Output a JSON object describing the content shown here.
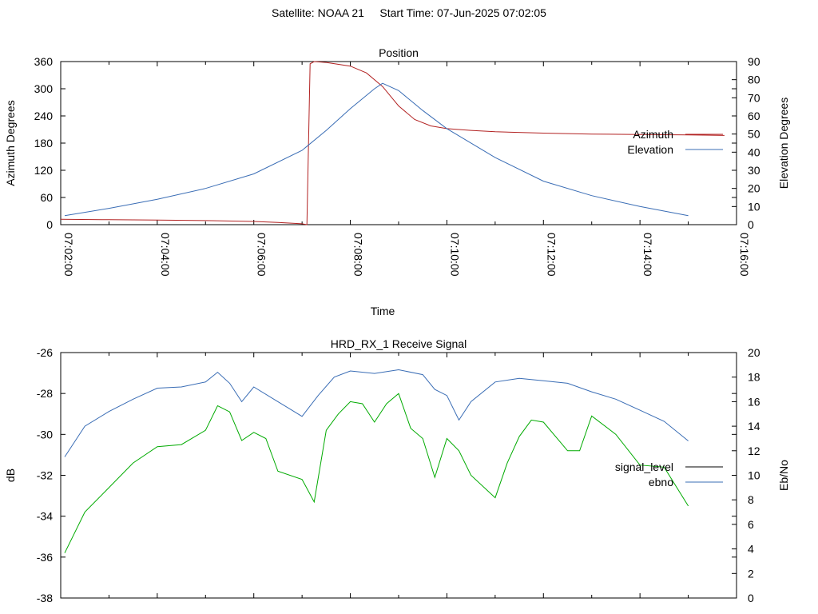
{
  "page": {
    "title": "Satellite: NOAA 21     Start Time: 07-Jun-2025 07:02:05"
  },
  "colors": {
    "azimuth": "#b22222",
    "elevation": "#3a6db5",
    "signal_level": "#00aa00",
    "ebno": "#3a6db5"
  },
  "chart_data": [
    {
      "type": "line",
      "title": "Position",
      "xlabel": "Time",
      "ylabel": "Azimuth Degrees",
      "y2label": "Elevation Degrees",
      "xlim": [
        "07:02:00",
        "07:16:00"
      ],
      "xticks": [
        "07:02:00",
        "07:04:00",
        "07:06:00",
        "07:08:00",
        "07:10:00",
        "07:12:00",
        "07:14:00",
        "07:16:00"
      ],
      "ylim": [
        0,
        360
      ],
      "yticks": [
        0,
        60,
        120,
        180,
        240,
        300,
        360
      ],
      "y2lim": [
        0,
        90
      ],
      "y2ticks": [
        0,
        10,
        20,
        30,
        40,
        50,
        60,
        70,
        80,
        90
      ],
      "legend": "right",
      "series": [
        {
          "name": "Azimuth",
          "axis": "y",
          "color": "#b22222",
          "x": [
            "07:02:00",
            "07:03:00",
            "07:04:00",
            "07:05:00",
            "07:06:00",
            "07:06:30",
            "07:07:00",
            "07:07:06",
            "07:07:10",
            "07:07:15",
            "07:07:30",
            "07:08:00",
            "07:08:20",
            "07:08:40",
            "07:09:00",
            "07:09:20",
            "07:09:40",
            "07:10:00",
            "07:10:30",
            "07:11:00",
            "07:12:00",
            "07:13:00",
            "07:14:00",
            "07:15:00",
            "07:15:45"
          ],
          "y": [
            12,
            11,
            10,
            9,
            7,
            5,
            2,
            0,
            355,
            360,
            358,
            350,
            335,
            305,
            262,
            232,
            218,
            212,
            208,
            205,
            202,
            200,
            199,
            198,
            197
          ]
        },
        {
          "name": "Elevation",
          "axis": "y2",
          "color": "#3a6db5",
          "x": [
            "07:02:05",
            "07:03:00",
            "07:04:00",
            "07:05:00",
            "07:06:00",
            "07:07:00",
            "07:07:30",
            "07:08:00",
            "07:08:30",
            "07:08:40",
            "07:09:00",
            "07:09:30",
            "07:10:00",
            "07:11:00",
            "07:12:00",
            "07:13:00",
            "07:14:00",
            "07:15:00"
          ],
          "y": [
            5,
            9,
            14,
            20,
            28,
            41,
            52,
            64,
            75,
            78,
            74,
            63,
            53,
            37,
            24,
            16,
            10,
            5
          ]
        }
      ]
    },
    {
      "type": "line",
      "title": "HRD_RX_1 Receive Signal",
      "ylabel": "dB",
      "y2label": "Eb/No",
      "ylim": [
        -38,
        -26
      ],
      "yticks": [
        -38,
        -36,
        -34,
        -32,
        -30,
        -28,
        -26
      ],
      "y2lim": [
        0,
        20
      ],
      "y2ticks": [
        0,
        2,
        4,
        6,
        8,
        10,
        12,
        14,
        16,
        18,
        20
      ],
      "xlim": [
        "07:02:00",
        "07:16:00"
      ],
      "legend": "right",
      "series": [
        {
          "name": "signal_level",
          "axis": "y",
          "color": "#00aa00",
          "x": [
            "07:02:05",
            "07:02:30",
            "07:03:00",
            "07:03:30",
            "07:04:00",
            "07:04:30",
            "07:05:00",
            "07:05:15",
            "07:05:30",
            "07:05:45",
            "07:06:00",
            "07:06:15",
            "07:06:30",
            "07:07:00",
            "07:07:15",
            "07:07:30",
            "07:07:45",
            "07:08:00",
            "07:08:15",
            "07:08:30",
            "07:08:45",
            "07:09:00",
            "07:09:15",
            "07:09:30",
            "07:09:45",
            "07:10:00",
            "07:10:15",
            "07:10:30",
            "07:11:00",
            "07:11:15",
            "07:11:30",
            "07:11:45",
            "07:12:00",
            "07:12:30",
            "07:12:45",
            "07:13:00",
            "07:13:30",
            "07:14:00",
            "07:14:30",
            "07:15:00"
          ],
          "y": [
            -35.8,
            -33.8,
            -32.6,
            -31.4,
            -30.6,
            -30.5,
            -29.8,
            -28.6,
            -28.9,
            -30.3,
            -29.9,
            -30.2,
            -31.8,
            -32.2,
            -33.3,
            -29.8,
            -29.0,
            -28.4,
            -28.5,
            -29.4,
            -28.5,
            -28.0,
            -29.7,
            -30.2,
            -32.1,
            -30.2,
            -30.8,
            -32.0,
            -33.1,
            -31.4,
            -30.1,
            -29.3,
            -29.4,
            -30.8,
            -30.8,
            -29.1,
            -30.0,
            -31.5,
            -31.6,
            -33.5
          ]
        },
        {
          "name": "ebno",
          "axis": "y2",
          "color": "#3a6db5",
          "x": [
            "07:02:05",
            "07:02:30",
            "07:03:00",
            "07:03:30",
            "07:04:00",
            "07:04:30",
            "07:05:00",
            "07:05:15",
            "07:05:30",
            "07:05:45",
            "07:06:00",
            "07:06:30",
            "07:07:00",
            "07:07:20",
            "07:07:40",
            "07:08:00",
            "07:08:30",
            "07:09:00",
            "07:09:30",
            "07:09:45",
            "07:10:00",
            "07:10:15",
            "07:10:30",
            "07:11:00",
            "07:11:30",
            "07:12:00",
            "07:12:30",
            "07:13:00",
            "07:13:30",
            "07:14:00",
            "07:14:30",
            "07:15:00"
          ],
          "y": [
            11.5,
            14.0,
            15.2,
            16.2,
            17.1,
            17.2,
            17.6,
            18.4,
            17.5,
            16.0,
            17.2,
            16.0,
            14.8,
            16.5,
            18.0,
            18.5,
            18.3,
            18.6,
            18.2,
            17.0,
            16.5,
            14.5,
            16.0,
            17.6,
            17.9,
            17.7,
            17.5,
            16.8,
            16.2,
            15.3,
            14.4,
            12.8
          ]
        }
      ]
    }
  ]
}
